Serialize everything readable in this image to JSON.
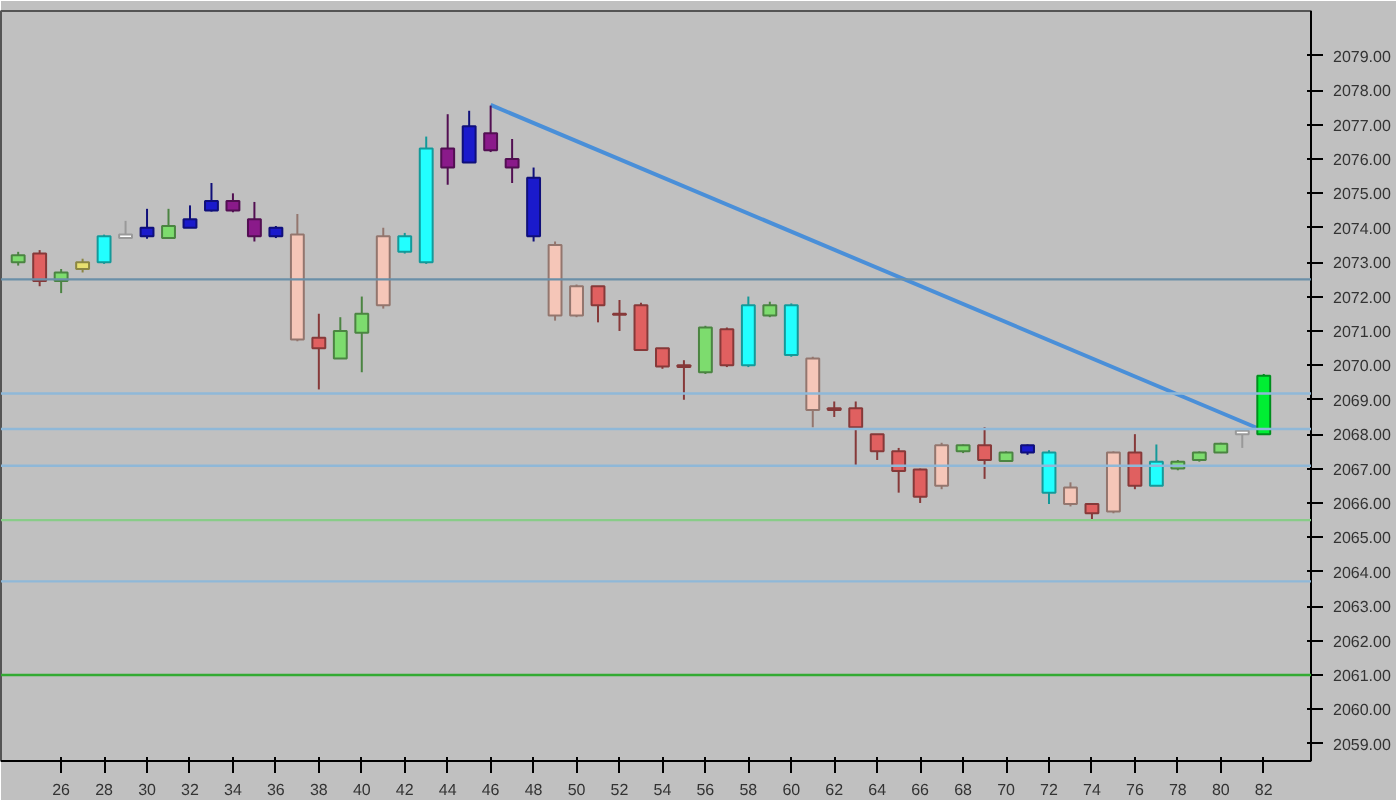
{
  "chart_data": {
    "type": "candlestick",
    "categories": [
      null,
      null,
      "26",
      null,
      "28",
      null,
      "30",
      null,
      "32",
      null,
      "34",
      null,
      "36",
      null,
      "38",
      null,
      "40",
      null,
      "42",
      null,
      "44",
      null,
      "46",
      null,
      "48",
      null,
      "50",
      null,
      "52",
      null,
      "54",
      null,
      "56",
      null,
      "58",
      null,
      "60",
      null,
      "62",
      null,
      "64",
      null,
      "66",
      null,
      "68",
      null,
      "70",
      null,
      "72",
      null,
      "74",
      null,
      "76",
      null,
      "78",
      null,
      "80",
      null,
      "82"
    ],
    "ohlc": [
      [
        2073.0,
        2073.3,
        2072.9,
        2073.2
      ],
      [
        2073.25,
        2073.35,
        2072.3,
        2072.45
      ],
      [
        2072.45,
        2072.8,
        2072.1,
        2072.7
      ],
      [
        2072.8,
        2073.1,
        2072.7,
        2073.0
      ],
      [
        2073.0,
        2073.8,
        2072.95,
        2073.75
      ],
      [
        2073.7,
        2074.2,
        2073.7,
        2073.8
      ],
      [
        2074.0,
        2074.55,
        2073.68,
        2073.75
      ],
      [
        2073.7,
        2074.55,
        2073.68,
        2074.05
      ],
      [
        2074.0,
        2074.65,
        2074.0,
        2074.25
      ],
      [
        2074.5,
        2075.3,
        2074.47,
        2074.78
      ],
      [
        2074.78,
        2075.0,
        2074.45,
        2074.5
      ],
      [
        2074.25,
        2074.75,
        2073.6,
        2073.75
      ],
      [
        2074.0,
        2074.05,
        2073.7,
        2073.75
      ],
      [
        2073.8,
        2074.4,
        2070.7,
        2070.75
      ],
      [
        2070.8,
        2071.5,
        2069.3,
        2070.5
      ],
      [
        2070.2,
        2071.4,
        2070.2,
        2071.0
      ],
      [
        2070.95,
        2072.0,
        2069.8,
        2071.5
      ],
      [
        2071.75,
        2074.0,
        2071.65,
        2073.75
      ],
      [
        2073.3,
        2073.85,
        2073.25,
        2073.75
      ],
      [
        2073.0,
        2076.65,
        2072.95,
        2076.3
      ],
      [
        2076.3,
        2077.3,
        2075.25,
        2075.75
      ],
      [
        2075.9,
        2077.4,
        2075.9,
        2076.95
      ],
      [
        2076.75,
        2077.55,
        2076.2,
        2076.25
      ],
      [
        2076.0,
        2076.58,
        2075.3,
        2075.75
      ],
      [
        2075.45,
        2075.75,
        2073.6,
        2073.75
      ],
      [
        2073.5,
        2073.6,
        2071.3,
        2071.45
      ],
      [
        2072.3,
        2072.35,
        2071.4,
        2071.45
      ],
      [
        2072.3,
        2072.3,
        2071.25,
        2071.75
      ],
      [
        2071.5,
        2071.9,
        2071.0,
        2071.47
      ],
      [
        2071.75,
        2071.82,
        2070.45,
        2070.45
      ],
      [
        2070.5,
        2070.5,
        2069.9,
        2069.97
      ],
      [
        2070.0,
        2070.15,
        2069.0,
        2069.95
      ],
      [
        2069.8,
        2071.15,
        2069.75,
        2071.1
      ],
      [
        2071.05,
        2071.1,
        2069.95,
        2070.0
      ],
      [
        2070.0,
        2072.0,
        2069.95,
        2071.75
      ],
      [
        2071.45,
        2071.85,
        2071.4,
        2071.75
      ],
      [
        2071.75,
        2071.8,
        2070.25,
        2070.3
      ],
      [
        2070.2,
        2070.25,
        2068.2,
        2068.7
      ],
      [
        2068.75,
        2068.95,
        2068.5,
        2068.7
      ],
      [
        2068.75,
        2068.95,
        2067.05,
        2068.2
      ],
      [
        2068.0,
        2068.0,
        2067.25,
        2067.5
      ],
      [
        2067.5,
        2067.6,
        2066.3,
        2066.93
      ],
      [
        2066.97,
        2067.0,
        2066.0,
        2066.18
      ],
      [
        2066.5,
        2067.75,
        2066.4,
        2067.68
      ],
      [
        2067.5,
        2067.7,
        2067.45,
        2067.68
      ],
      [
        2067.68,
        2068.2,
        2066.7,
        2067.25
      ],
      [
        2067.22,
        2067.5,
        2067.2,
        2067.47
      ],
      [
        2067.68,
        2067.7,
        2067.4,
        2067.47
      ],
      [
        2067.47,
        2067.53,
        2065.97,
        2066.3
      ],
      [
        2066.45,
        2066.6,
        2065.9,
        2065.97
      ],
      [
        2065.97,
        2066.0,
        2065.5,
        2065.7
      ],
      [
        2065.75,
        2067.5,
        2065.7,
        2067.47
      ],
      [
        2067.47,
        2068.0,
        2066.4,
        2066.5
      ],
      [
        2066.5,
        2067.7,
        2066.5,
        2067.2
      ],
      [
        2067.0,
        2067.25,
        2066.95,
        2067.2
      ],
      [
        2067.25,
        2067.5,
        2067.2,
        2067.47
      ],
      [
        2067.47,
        2067.75,
        2067.45,
        2067.72
      ],
      [
        2068.0,
        2068.1,
        2067.6,
        2068.1
      ],
      [
        2068.0,
        2069.75,
        2068.0,
        2069.7
      ]
    ],
    "colors": [
      "#7ddc6e",
      "#e06060",
      "#7ddc6e",
      "#e8e070",
      "#22ffff",
      "#ffffff",
      "#1a1acc",
      "#7ddc6e",
      "#1a1acc",
      "#1a1acc",
      "#8a1a8a",
      "#8a1a8a",
      "#1a1acc",
      "#f5c6b8",
      "#e06060",
      "#7ddc6e",
      "#7ddc6e",
      "#f5c6b8",
      "#22ffff",
      "#22ffff",
      "#8a1a8a",
      "#1a1acc",
      "#8a1a8a",
      "#8a1a8a",
      "#1a1acc",
      "#f5c6b8",
      "#f5c6b8",
      "#e06060",
      "#e06060",
      "#e06060",
      "#e06060",
      "#e06060",
      "#7ddc6e",
      "#e06060",
      "#22ffff",
      "#7ddc6e",
      "#22ffff",
      "#f5c6b8",
      "#e06060",
      "#e06060",
      "#e06060",
      "#e06060",
      "#e06060",
      "#f5c6b8",
      "#7ddc6e",
      "#e06060",
      "#7ddc6e",
      "#1a1acc",
      "#22ffff",
      "#f5c6b8",
      "#e06060",
      "#f5c6b8",
      "#e06060",
      "#22ffff",
      "#7ddc6e",
      "#7ddc6e",
      "#7ddc6e",
      "#ffffff",
      "#00ee33"
    ],
    "series": [
      {
        "type": "line",
        "color": "#4a8fd8",
        "x": [
          "46",
          "82"
        ],
        "values": [
          2077.57,
          2068.1
        ]
      }
    ],
    "ref_lines": [
      {
        "axis": "y",
        "value": 2072.5,
        "color": "#6a8fa8"
      },
      {
        "axis": "y",
        "value": 2069.18,
        "color": "#8fb8d8"
      },
      {
        "axis": "y",
        "value": 2068.15,
        "color": "#8fb8d8"
      },
      {
        "axis": "y",
        "value": 2067.08,
        "color": "#8fb8d8"
      },
      {
        "axis": "y",
        "value": 2063.72,
        "color": "#8fb8d8"
      },
      {
        "axis": "y",
        "value": 2065.5,
        "color": "#88cc88"
      },
      {
        "axis": "y",
        "value": 2061.0,
        "color": "#33aa33"
      }
    ],
    "ylim": [
      2058.5,
      2080.3
    ],
    "yticks": [
      {
        "value": 2059,
        "label": "2059.00"
      },
      {
        "value": 2060,
        "label": "2060.00"
      },
      {
        "value": 2061,
        "label": "2061.00"
      },
      {
        "value": 2062,
        "label": "2062.00"
      },
      {
        "value": 2063,
        "label": "2063.00"
      },
      {
        "value": 2064,
        "label": "2064.00"
      },
      {
        "value": 2065,
        "label": "2065.00"
      },
      {
        "value": 2066,
        "label": "2066.00"
      },
      {
        "value": 2067,
        "label": "2067.00"
      },
      {
        "value": 2068,
        "label": "2068.00"
      },
      {
        "value": 2069,
        "label": "2069.00"
      },
      {
        "value": 2070,
        "label": "2070.00"
      },
      {
        "value": 2071,
        "label": "2071.00"
      },
      {
        "value": 2072,
        "label": "2072.00"
      },
      {
        "value": 2073,
        "label": "2073.00"
      },
      {
        "value": 2074,
        "label": "2074.00"
      },
      {
        "value": 2075,
        "label": "2075.00"
      },
      {
        "value": 2076,
        "label": "2076.00"
      },
      {
        "value": 2077,
        "label": "2077.00"
      },
      {
        "value": 2078,
        "label": "2078.00"
      },
      {
        "value": 2079,
        "label": "2079.00"
      }
    ],
    "grid": false
  }
}
